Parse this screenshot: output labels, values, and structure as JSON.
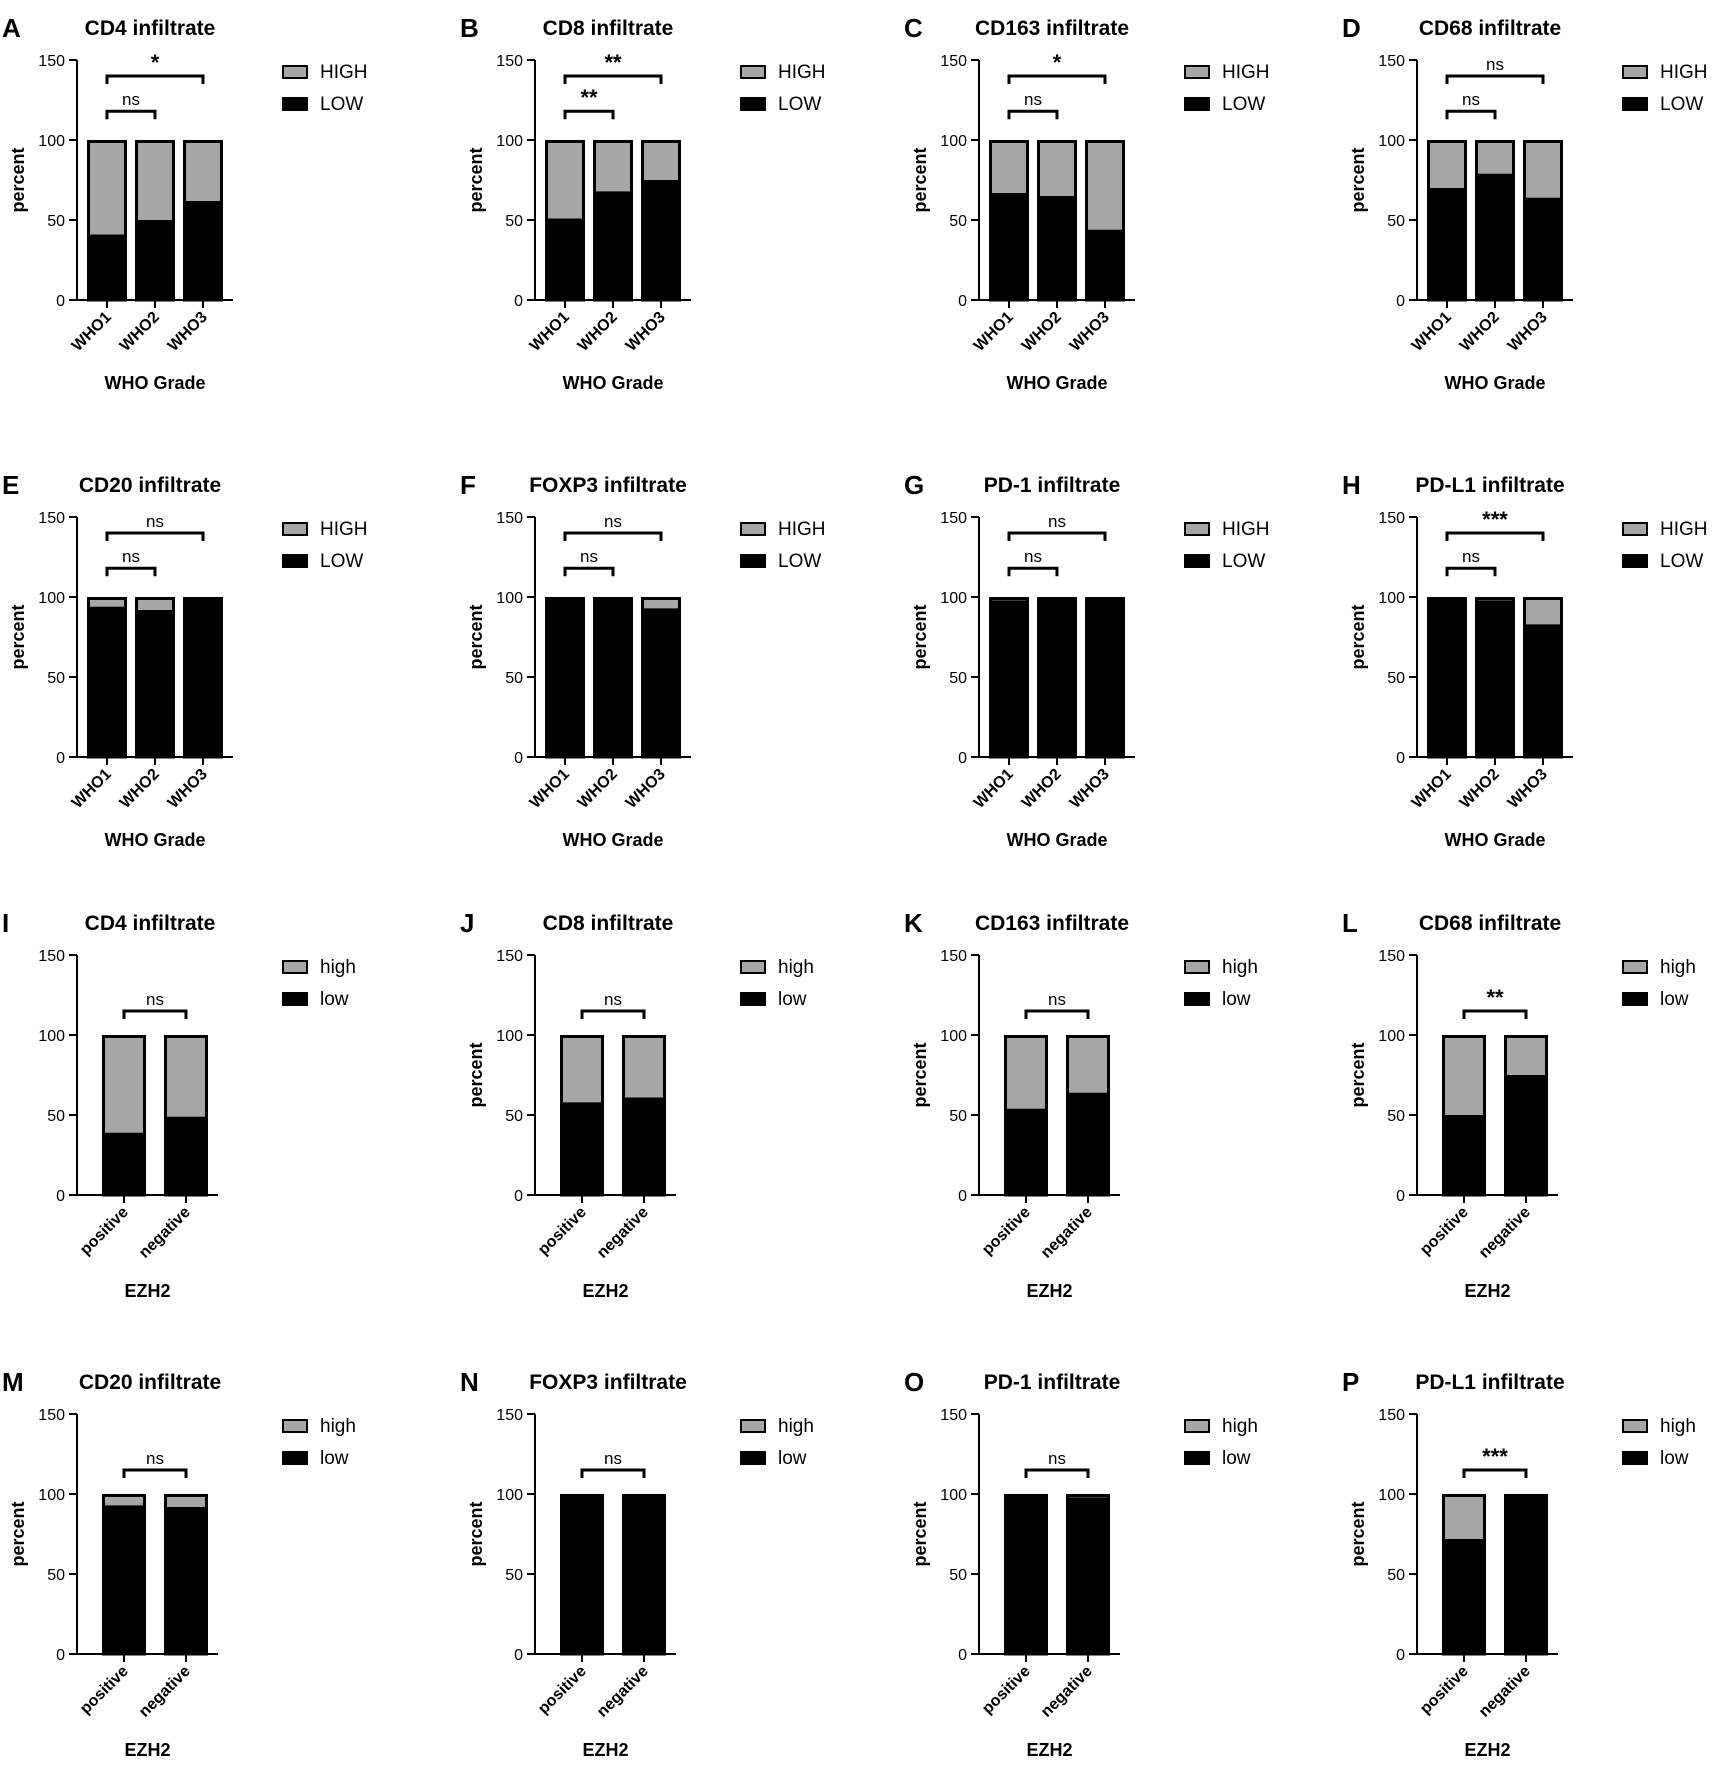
{
  "colors": {
    "high": "#a6a6a6",
    "low": "#000000",
    "axis": "#000000",
    "background": "#ffffff"
  },
  "chart_data": [
    {
      "panel": "A",
      "type": "bar",
      "stacked": true,
      "title": "CD4 infiltrate",
      "xlabel": "WHO Grade",
      "ylabel": "percent",
      "ylim": [
        0,
        150
      ],
      "yticks": [
        0,
        50,
        100,
        150
      ],
      "categories": [
        "WHO1",
        "WHO2",
        "WHO3"
      ],
      "series": [
        {
          "name": "HIGH",
          "values": [
            59,
            50,
            38
          ]
        },
        {
          "name": "LOW",
          "values": [
            41,
            50,
            62
          ]
        }
      ],
      "brackets": [
        {
          "from": 0,
          "to": 1,
          "label": "ns"
        },
        {
          "from": 0,
          "to": 2,
          "label": "*"
        }
      ]
    },
    {
      "panel": "B",
      "type": "bar",
      "stacked": true,
      "title": "CD8 infiltrate",
      "xlabel": "WHO Grade",
      "ylabel": "percent",
      "ylim": [
        0,
        150
      ],
      "yticks": [
        0,
        50,
        100,
        150
      ],
      "categories": [
        "WHO1",
        "WHO2",
        "WHO3"
      ],
      "series": [
        {
          "name": "HIGH",
          "values": [
            49,
            32,
            25
          ]
        },
        {
          "name": "LOW",
          "values": [
            51,
            68,
            75
          ]
        }
      ],
      "brackets": [
        {
          "from": 0,
          "to": 1,
          "label": "**"
        },
        {
          "from": 0,
          "to": 2,
          "label": "**"
        }
      ]
    },
    {
      "panel": "C",
      "type": "bar",
      "stacked": true,
      "title": "CD163 infiltrate",
      "xlabel": "WHO Grade",
      "ylabel": "percent",
      "ylim": [
        0,
        150
      ],
      "yticks": [
        0,
        50,
        100,
        150
      ],
      "categories": [
        "WHO1",
        "WHO2",
        "WHO3"
      ],
      "series": [
        {
          "name": "HIGH",
          "values": [
            33,
            35,
            56
          ]
        },
        {
          "name": "LOW",
          "values": [
            67,
            65,
            44
          ]
        }
      ],
      "brackets": [
        {
          "from": 0,
          "to": 1,
          "label": "ns"
        },
        {
          "from": 0,
          "to": 2,
          "label": "*"
        }
      ]
    },
    {
      "panel": "D",
      "type": "bar",
      "stacked": true,
      "title": "CD68 infiltrate",
      "xlabel": "WHO Grade",
      "ylabel": "percent",
      "ylim": [
        0,
        150
      ],
      "yticks": [
        0,
        50,
        100,
        150
      ],
      "categories": [
        "WHO1",
        "WHO2",
        "WHO3"
      ],
      "series": [
        {
          "name": "HIGH",
          "values": [
            30,
            21,
            36
          ]
        },
        {
          "name": "LOW",
          "values": [
            70,
            79,
            64
          ]
        }
      ],
      "brackets": [
        {
          "from": 0,
          "to": 1,
          "label": "ns"
        },
        {
          "from": 0,
          "to": 2,
          "label": "ns"
        }
      ]
    },
    {
      "panel": "E",
      "type": "bar",
      "stacked": true,
      "title": "CD20 infiltrate",
      "xlabel": "WHO Grade",
      "ylabel": "percent",
      "ylim": [
        0,
        150
      ],
      "yticks": [
        0,
        50,
        100,
        150
      ],
      "categories": [
        "WHO1",
        "WHO2",
        "WHO3"
      ],
      "series": [
        {
          "name": "HIGH",
          "values": [
            6,
            8,
            0
          ]
        },
        {
          "name": "LOW",
          "values": [
            94,
            92,
            100
          ]
        }
      ],
      "brackets": [
        {
          "from": 0,
          "to": 1,
          "label": "ns"
        },
        {
          "from": 0,
          "to": 2,
          "label": "ns"
        }
      ]
    },
    {
      "panel": "F",
      "type": "bar",
      "stacked": true,
      "title": "FOXP3 infiltrate",
      "xlabel": "WHO Grade",
      "ylabel": "percent",
      "ylim": [
        0,
        150
      ],
      "yticks": [
        0,
        50,
        100,
        150
      ],
      "categories": [
        "WHO1",
        "WHO2",
        "WHO3"
      ],
      "series": [
        {
          "name": "HIGH",
          "values": [
            0,
            0,
            7
          ]
        },
        {
          "name": "LOW",
          "values": [
            100,
            100,
            93
          ]
        }
      ],
      "brackets": [
        {
          "from": 0,
          "to": 1,
          "label": "ns"
        },
        {
          "from": 0,
          "to": 2,
          "label": "ns"
        }
      ]
    },
    {
      "panel": "G",
      "type": "bar",
      "stacked": true,
      "title": "PD-1 infiltrate",
      "xlabel": "WHO Grade",
      "ylabel": "percent",
      "ylim": [
        0,
        150
      ],
      "yticks": [
        0,
        50,
        100,
        150
      ],
      "categories": [
        "WHO1",
        "WHO2",
        "WHO3"
      ],
      "series": [
        {
          "name": "HIGH",
          "values": [
            2,
            0,
            0
          ]
        },
        {
          "name": "LOW",
          "values": [
            98,
            100,
            100
          ]
        }
      ],
      "brackets": [
        {
          "from": 0,
          "to": 1,
          "label": "ns"
        },
        {
          "from": 0,
          "to": 2,
          "label": "ns"
        }
      ]
    },
    {
      "panel": "H",
      "type": "bar",
      "stacked": true,
      "title": "PD-L1 infiltrate",
      "xlabel": "WHO Grade",
      "ylabel": "percent",
      "ylim": [
        0,
        150
      ],
      "yticks": [
        0,
        50,
        100,
        150
      ],
      "categories": [
        "WHO1",
        "WHO2",
        "WHO3"
      ],
      "series": [
        {
          "name": "HIGH",
          "values": [
            0,
            2,
            17
          ]
        },
        {
          "name": "LOW",
          "values": [
            100,
            98,
            83
          ]
        }
      ],
      "brackets": [
        {
          "from": 0,
          "to": 1,
          "label": "ns"
        },
        {
          "from": 0,
          "to": 2,
          "label": "***"
        }
      ]
    },
    {
      "panel": "I",
      "type": "bar",
      "stacked": true,
      "title": "CD4 infiltrate",
      "xlabel": "EZH2",
      "ylabel": "",
      "ylim": [
        0,
        150
      ],
      "yticks": [
        0,
        50,
        100,
        150
      ],
      "categories": [
        "positive",
        "negative"
      ],
      "series": [
        {
          "name": "high",
          "values": [
            61,
            51
          ]
        },
        {
          "name": "low",
          "values": [
            39,
            49
          ]
        }
      ],
      "brackets": [
        {
          "from": 0,
          "to": 1,
          "label": "ns"
        }
      ]
    },
    {
      "panel": "J",
      "type": "bar",
      "stacked": true,
      "title": "CD8 infiltrate",
      "xlabel": "EZH2",
      "ylabel": "percent",
      "ylim": [
        0,
        150
      ],
      "yticks": [
        0,
        50,
        100,
        150
      ],
      "categories": [
        "positive",
        "negative"
      ],
      "series": [
        {
          "name": "high",
          "values": [
            42,
            39
          ]
        },
        {
          "name": "low",
          "values": [
            58,
            61
          ]
        }
      ],
      "brackets": [
        {
          "from": 0,
          "to": 1,
          "label": "ns"
        }
      ]
    },
    {
      "panel": "K",
      "type": "bar",
      "stacked": true,
      "title": "CD163 infiltrate",
      "xlabel": "EZH2",
      "ylabel": "percent",
      "ylim": [
        0,
        150
      ],
      "yticks": [
        0,
        50,
        100,
        150
      ],
      "categories": [
        "positive",
        "negative"
      ],
      "series": [
        {
          "name": "high",
          "values": [
            46,
            36
          ]
        },
        {
          "name": "low",
          "values": [
            54,
            64
          ]
        }
      ],
      "brackets": [
        {
          "from": 0,
          "to": 1,
          "label": "ns"
        }
      ]
    },
    {
      "panel": "L",
      "type": "bar",
      "stacked": true,
      "title": "CD68 infiltrate",
      "xlabel": "EZH2",
      "ylabel": "percent",
      "ylim": [
        0,
        150
      ],
      "yticks": [
        0,
        50,
        100,
        150
      ],
      "categories": [
        "positive",
        "negative"
      ],
      "series": [
        {
          "name": "high",
          "values": [
            50,
            25
          ]
        },
        {
          "name": "low",
          "values": [
            50,
            75
          ]
        }
      ],
      "brackets": [
        {
          "from": 0,
          "to": 1,
          "label": "**"
        }
      ]
    },
    {
      "panel": "M",
      "type": "bar",
      "stacked": true,
      "title": "CD20 infiltrate",
      "xlabel": "EZH2",
      "ylabel": "percent",
      "ylim": [
        0,
        150
      ],
      "yticks": [
        0,
        50,
        100,
        150
      ],
      "categories": [
        "positive",
        "negative"
      ],
      "series": [
        {
          "name": "high",
          "values": [
            7,
            8
          ]
        },
        {
          "name": "low",
          "values": [
            93,
            92
          ]
        }
      ],
      "brackets": [
        {
          "from": 0,
          "to": 1,
          "label": "ns"
        }
      ]
    },
    {
      "panel": "N",
      "type": "bar",
      "stacked": true,
      "title": "FOXP3 infiltrate",
      "xlabel": "EZH2",
      "ylabel": "percent",
      "ylim": [
        0,
        150
      ],
      "yticks": [
        0,
        50,
        100,
        150
      ],
      "categories": [
        "positive",
        "negative"
      ],
      "series": [
        {
          "name": "high",
          "values": [
            0,
            0
          ]
        },
        {
          "name": "low",
          "values": [
            100,
            100
          ]
        }
      ],
      "brackets": [
        {
          "from": 0,
          "to": 1,
          "label": "ns"
        }
      ]
    },
    {
      "panel": "O",
      "type": "bar",
      "stacked": true,
      "title": "PD-1 infiltrate",
      "xlabel": "EZH2",
      "ylabel": "percent",
      "ylim": [
        0,
        150
      ],
      "yticks": [
        0,
        50,
        100,
        150
      ],
      "categories": [
        "positive",
        "negative"
      ],
      "series": [
        {
          "name": "high",
          "values": [
            0,
            2
          ]
        },
        {
          "name": "low",
          "values": [
            100,
            98
          ]
        }
      ],
      "brackets": [
        {
          "from": 0,
          "to": 1,
          "label": "ns"
        }
      ]
    },
    {
      "panel": "P",
      "type": "bar",
      "stacked": true,
      "title": "PD-L1 infiltrate",
      "xlabel": "EZH2",
      "ylabel": "percent",
      "ylim": [
        0,
        150
      ],
      "yticks": [
        0,
        50,
        100,
        150
      ],
      "categories": [
        "positive",
        "negative"
      ],
      "series": [
        {
          "name": "high",
          "values": [
            28,
            0
          ]
        },
        {
          "name": "low",
          "values": [
            72,
            100
          ]
        }
      ],
      "brackets": [
        {
          "from": 0,
          "to": 1,
          "label": "***"
        }
      ]
    }
  ]
}
